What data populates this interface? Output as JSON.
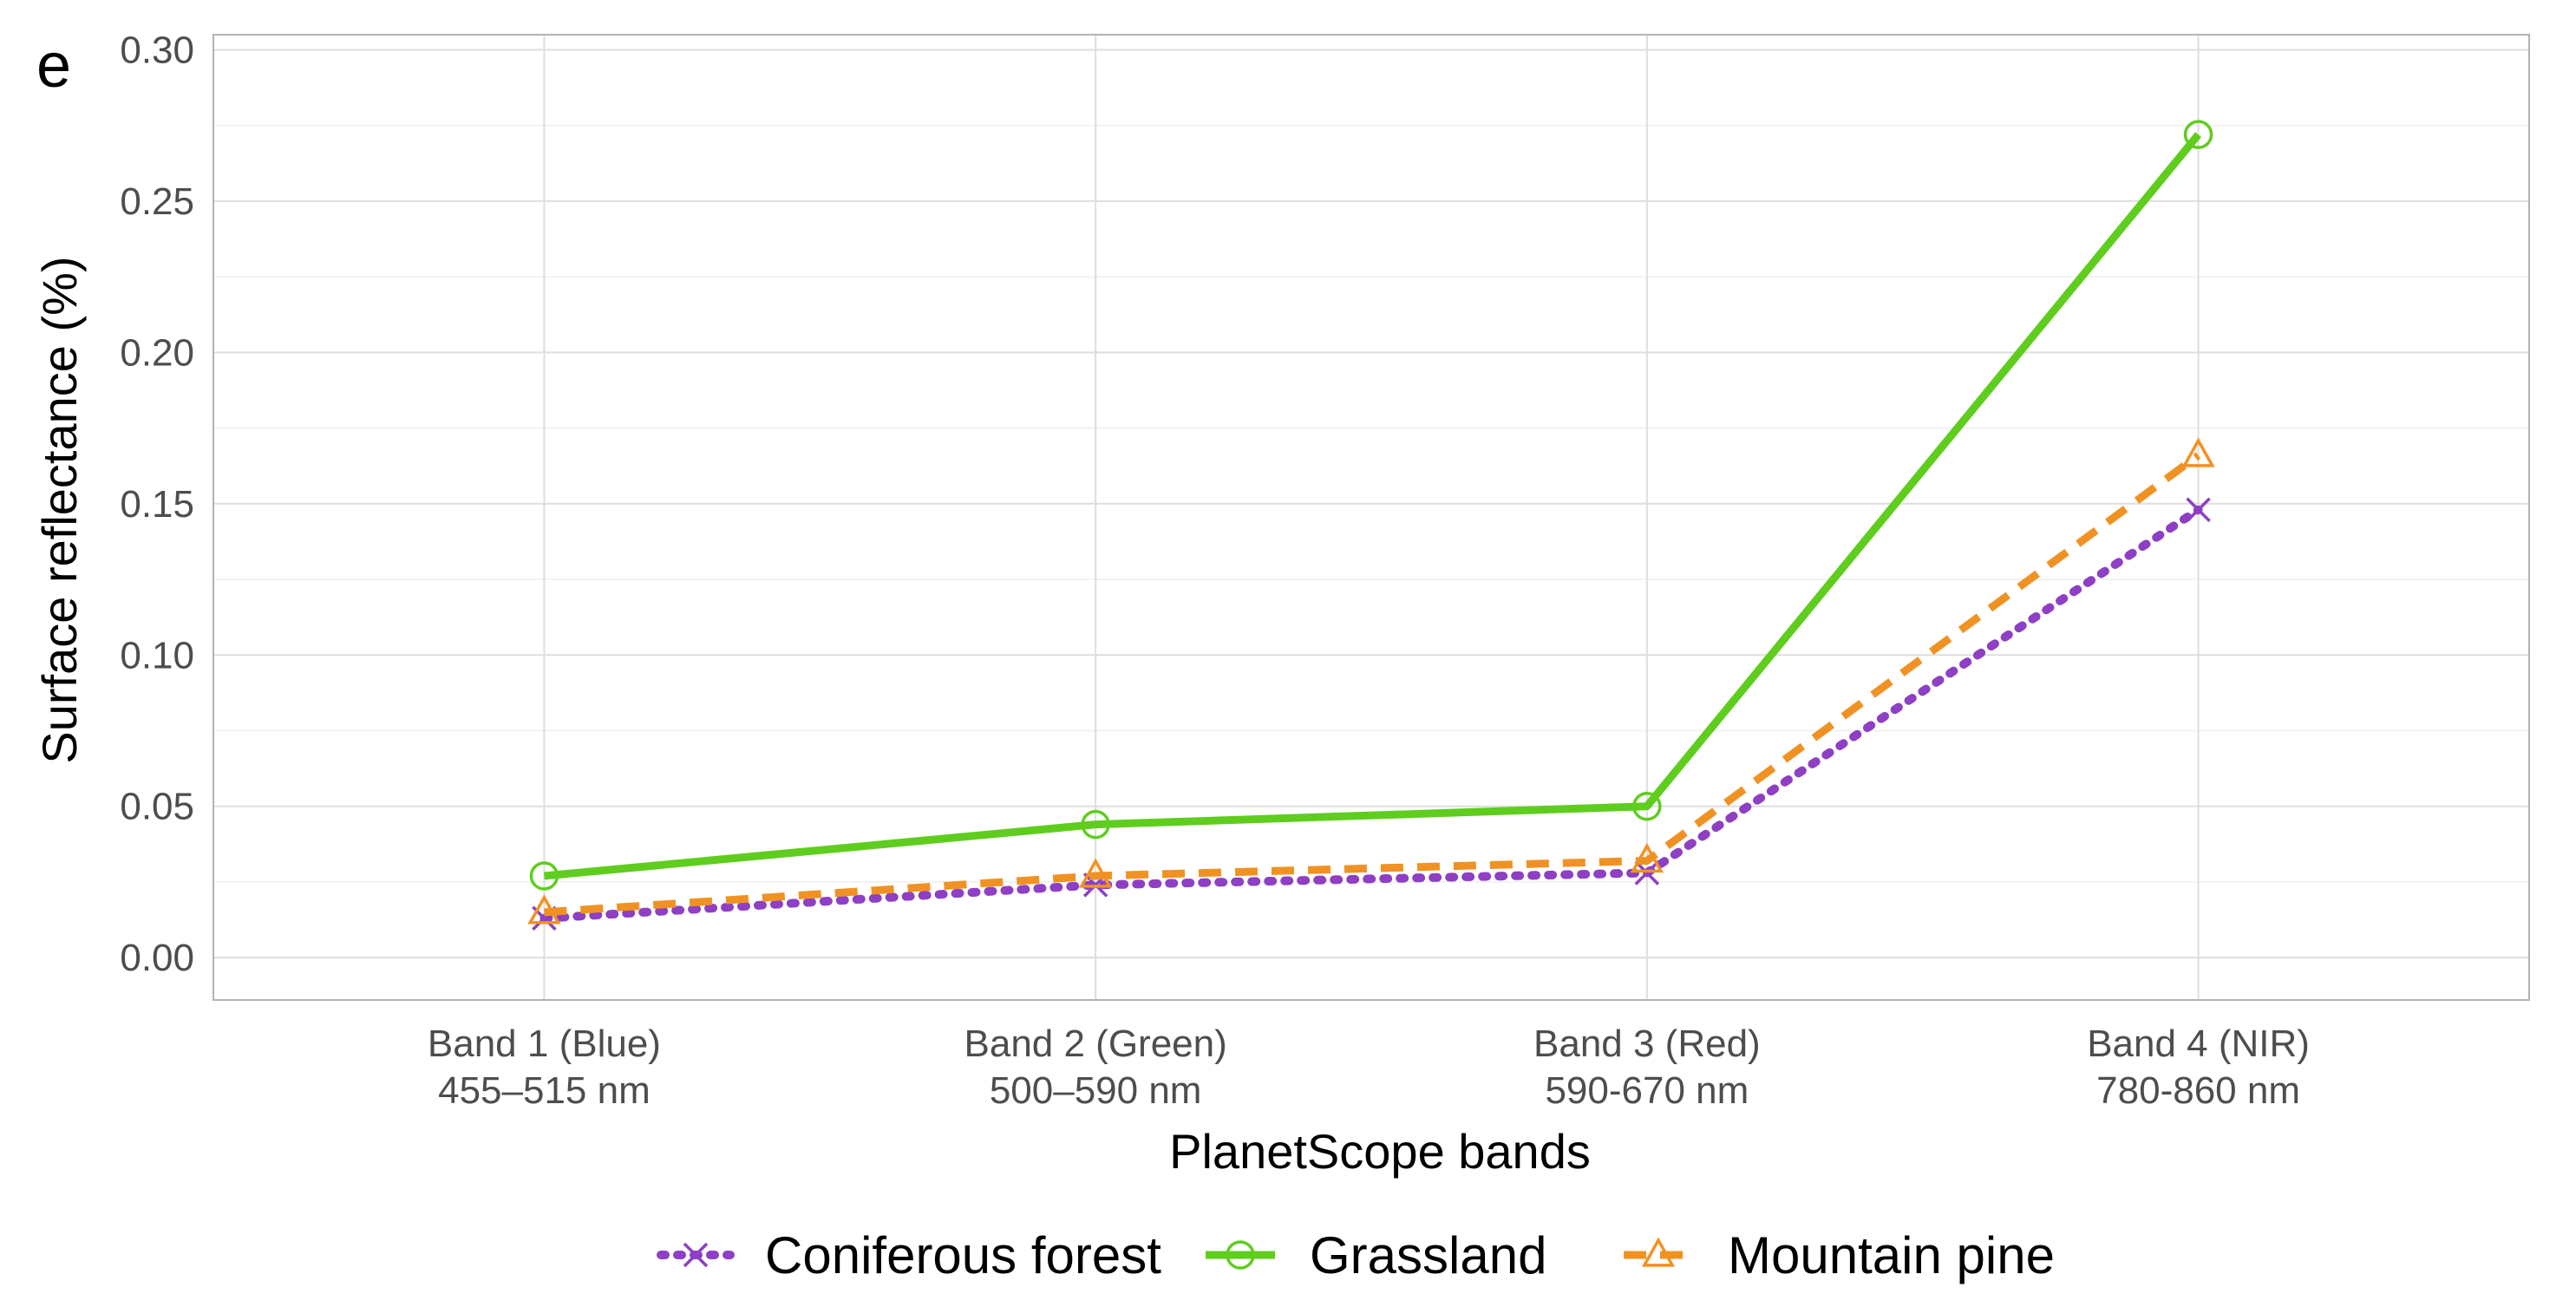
{
  "panel_label": "e",
  "chart_data": {
    "type": "line",
    "xlabel": "PlanetScope bands",
    "ylabel": "Surface reflectance (%)",
    "categories": [
      [
        "Band 1 (Blue)",
        "455–515 nm"
      ],
      [
        "Band 2 (Green)",
        "500–590 nm"
      ],
      [
        "Band 3 (Red)",
        "590-670 nm"
      ],
      [
        "Band 4 (NIR)",
        "780-860 nm"
      ]
    ],
    "ylim": [
      -0.014,
      0.305
    ],
    "yticks": [
      "0.00",
      "0.05",
      "0.10",
      "0.15",
      "0.20",
      "0.25",
      "0.30"
    ],
    "grid": true,
    "legend_position": "bottom",
    "series": [
      {
        "name": "Coniferous forest",
        "values": [
          0.013,
          0.024,
          0.028,
          0.148
        ],
        "color": "#8e3fc4",
        "line": "dotted",
        "marker": "x"
      },
      {
        "name": "Grassland",
        "values": [
          0.027,
          0.044,
          0.05,
          0.272
        ],
        "color": "#5fcd1e",
        "line": "solid",
        "marker": "circle"
      },
      {
        "name": "Mountain pine",
        "values": [
          0.015,
          0.027,
          0.032,
          0.166
        ],
        "color": "#f09223",
        "line": "dashed",
        "marker": "triangle"
      }
    ]
  }
}
